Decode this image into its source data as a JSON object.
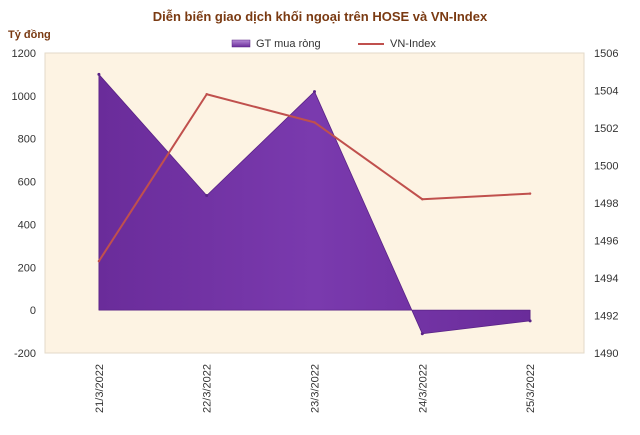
{
  "chart_data": {
    "type": "area+line",
    "title": "Diễn biến giao dịch khối ngoại trên HOSE và VN-Index",
    "y_left_label": "Tỷ đồng",
    "categories": [
      "21/3/2022",
      "22/3/2022",
      "23/3/2022",
      "24/3/2022",
      "25/3/2022"
    ],
    "series": [
      {
        "name": "GT mua ròng",
        "axis": "left",
        "kind": "area",
        "color": "#7030a0",
        "values": [
          1100,
          535,
          1020,
          -110,
          -50
        ]
      },
      {
        "name": "VN-Index",
        "axis": "right",
        "kind": "line",
        "color": "#c0504d",
        "values": [
          1494.9,
          1503.8,
          1502.3,
          1498.2,
          1498.5
        ]
      }
    ],
    "y_left": {
      "min": -200,
      "max": 1200,
      "ticks": [
        "-200",
        "0",
        "200",
        "400",
        "600",
        "800",
        "1000",
        "1200"
      ]
    },
    "y_right": {
      "min": 1490,
      "max": 1506,
      "ticks": [
        "1490",
        "1492",
        "1494",
        "1496",
        "1498",
        "1500",
        "1502",
        "1504",
        "1506"
      ]
    },
    "plot_background": "#fdf3e3",
    "legend_position": "top"
  }
}
